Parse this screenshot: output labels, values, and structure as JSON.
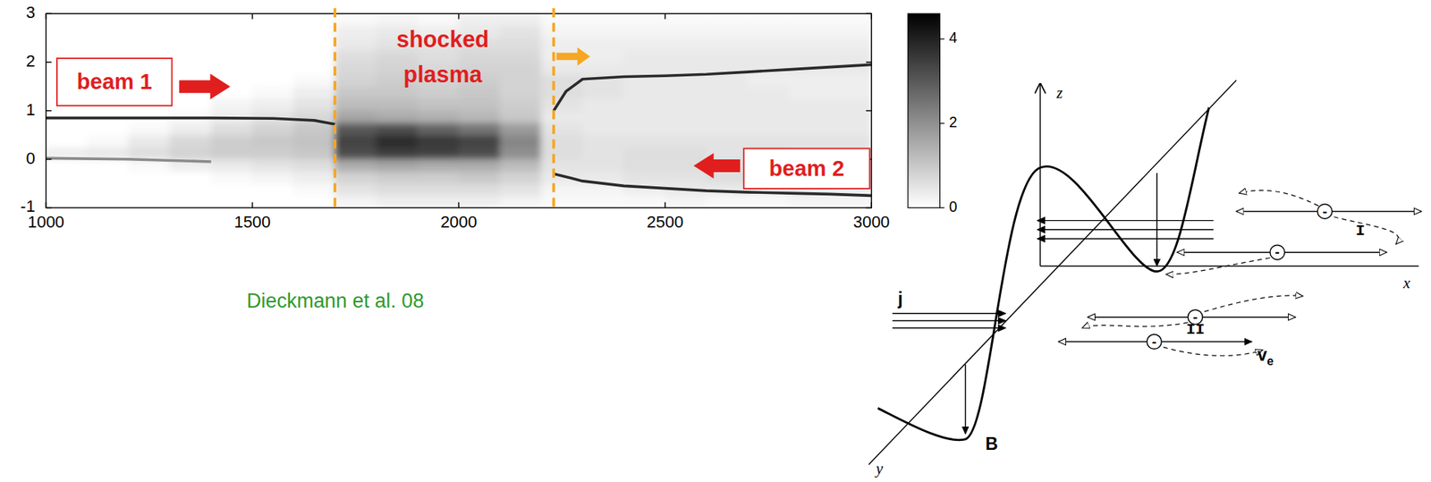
{
  "chart_data": {
    "type": "heatmap",
    "xlim": [
      1000,
      3000
    ],
    "ylim": [
      -1,
      3
    ],
    "xticks": [
      1000,
      1500,
      2000,
      2500,
      3000
    ],
    "yticks": [
      -1,
      0,
      1,
      2,
      3
    ],
    "x_bins": [
      1000,
      1100,
      1200,
      1300,
      1400,
      1500,
      1600,
      1700,
      1800,
      1900,
      2000,
      2100,
      2200,
      2300,
      2400,
      2500,
      2600,
      2700,
      2800,
      2900,
      3000
    ],
    "y_bins": [
      -1,
      -0.75,
      -0.5,
      -0.25,
      0,
      0.25,
      0.5,
      0.75,
      1,
      1.25,
      1.5,
      1.75,
      2,
      2.25,
      2.5,
      2.75,
      3
    ],
    "cells": [
      [
        0,
        0,
        0,
        0,
        0,
        0,
        0,
        0.2,
        0.3,
        0.3,
        0.3,
        0.2,
        0.1,
        0.1,
        0.1,
        0.2,
        0.1,
        0.1,
        0.2,
        0.2
      ],
      [
        0,
        0,
        0,
        0,
        0,
        0,
        0.1,
        0.5,
        0.6,
        0.6,
        0.6,
        0.5,
        0.2,
        0.2,
        0.3,
        0.4,
        0.4,
        0.3,
        0.4,
        0.3
      ],
      [
        0,
        0,
        0,
        0,
        0.1,
        0.2,
        0.3,
        0.8,
        0.9,
        0.9,
        1.0,
        0.8,
        0.4,
        0.4,
        0.5,
        0.5,
        0.6,
        0.5,
        0.5,
        0.5
      ],
      [
        0,
        0,
        0.1,
        0.3,
        0.4,
        0.5,
        0.6,
        1.5,
        1.6,
        1.5,
        1.5,
        1.2,
        0.5,
        0.5,
        0.6,
        0.6,
        0.6,
        0.6,
        0.5,
        0.5
      ],
      [
        0.3,
        0.4,
        0.6,
        0.8,
        0.9,
        0.9,
        1.0,
        3.2,
        3.5,
        3.4,
        3.2,
        2.0,
        0.6,
        0.5,
        0.6,
        0.6,
        0.5,
        0.6,
        0.5,
        0.5
      ],
      [
        0,
        0.1,
        0.4,
        0.7,
        0.9,
        1.0,
        1.1,
        3.4,
        3.8,
        3.6,
        3.4,
        2.2,
        0.6,
        0.5,
        0.5,
        0.5,
        0.5,
        0.5,
        0.5,
        0.5
      ],
      [
        0,
        0,
        0.1,
        0.3,
        0.6,
        0.8,
        1.0,
        3.0,
        3.2,
        2.8,
        2.5,
        1.8,
        0.5,
        0.4,
        0.4,
        0.4,
        0.4,
        0.4,
        0.4,
        0.4
      ],
      [
        0,
        0,
        0,
        0.1,
        0.3,
        0.5,
        0.7,
        1.6,
        1.5,
        1.4,
        1.3,
        1.0,
        0.4,
        0.4,
        0.4,
        0.4,
        0.4,
        0.4,
        0.4,
        0.4
      ],
      [
        0,
        0,
        0,
        0,
        0.2,
        0.3,
        0.5,
        1.2,
        1.2,
        1.1,
        1.1,
        0.9,
        0.5,
        0.4,
        0.4,
        0.4,
        0.4,
        0.4,
        0.4,
        0.4
      ],
      [
        0,
        0,
        0,
        0,
        0,
        0.1,
        0.3,
        1.0,
        1.0,
        0.9,
        1.0,
        0.8,
        0.6,
        0.5,
        0.4,
        0.4,
        0.4,
        0.4,
        0.3,
        0.3
      ],
      [
        0,
        0,
        0,
        0,
        0,
        0,
        0.1,
        0.8,
        0.9,
        0.8,
        0.9,
        0.8,
        0.6,
        0.5,
        0.4,
        0.4,
        0.4,
        0.3,
        0.3,
        0.3
      ],
      [
        0,
        0,
        0,
        0,
        0,
        0,
        0,
        0.7,
        0.8,
        0.7,
        0.8,
        0.8,
        0.4,
        0.4,
        0.4,
        0.4,
        0.4,
        0.4,
        0.4,
        0.4
      ],
      [
        0,
        0,
        0,
        0,
        0,
        0,
        0,
        0.6,
        0.7,
        0.6,
        0.7,
        0.7,
        0.3,
        0.3,
        0.4,
        0.4,
        0.4,
        0.4,
        0.4,
        0.4
      ],
      [
        0,
        0,
        0,
        0,
        0,
        0,
        0,
        0.4,
        0.5,
        0.5,
        0.6,
        0.6,
        0.3,
        0.3,
        0.3,
        0.3,
        0.3,
        0.3,
        0.3,
        0.3
      ],
      [
        0,
        0,
        0,
        0,
        0,
        0,
        0,
        0.3,
        0.4,
        0.3,
        0.4,
        0.5,
        0.2,
        0.2,
        0.2,
        0.2,
        0.2,
        0.2,
        0.2,
        0.2
      ],
      [
        0,
        0,
        0,
        0,
        0,
        0,
        0,
        0.1,
        0.2,
        0.1,
        0.3,
        0.3,
        0.1,
        0.1,
        0.1,
        0.1,
        0.1,
        0.1,
        0.1,
        0.1
      ]
    ],
    "colorbar": {
      "range": [
        0,
        4.6
      ],
      "ticks": [
        0,
        2,
        4
      ]
    },
    "series": [
      {
        "type": "line",
        "color": "#2a2a2a",
        "x": [
          1000,
          1200,
          1400,
          1550,
          1650,
          1700
        ],
        "values": [
          0.85,
          0.85,
          0.85,
          0.84,
          0.8,
          0.72
        ]
      },
      {
        "type": "line",
        "color": "#8a8a8a",
        "x": [
          1000,
          1200,
          1400
        ],
        "values": [
          0.02,
          0.0,
          -0.05
        ]
      },
      {
        "type": "line",
        "color": "#2a2a2a",
        "x": [
          2230,
          2260,
          2300,
          2400,
          2500,
          2600,
          2700,
          2800,
          2900,
          3000
        ],
        "values": [
          1.0,
          1.4,
          1.65,
          1.7,
          1.72,
          1.75,
          1.8,
          1.85,
          1.9,
          1.95
        ]
      },
      {
        "type": "line",
        "color": "#2a2a2a",
        "x": [
          2230,
          2300,
          2400,
          2500,
          2600,
          2700,
          2800,
          2900,
          3000
        ],
        "values": [
          -0.3,
          -0.45,
          -0.55,
          -0.6,
          -0.65,
          -0.68,
          -0.7,
          -0.72,
          -0.75
        ]
      }
    ],
    "vlines": [
      1700,
      2230
    ],
    "annotations": [
      {
        "text": "beam 1"
      },
      {
        "text": "shocked plasma"
      },
      {
        "text": "beam 2"
      }
    ],
    "caption": "Dieckmann et al. 08"
  },
  "diagram": {
    "axes": {
      "z": "z",
      "x": "x",
      "y": "y"
    },
    "labels": {
      "current": "j",
      "field": "B",
      "group_1": "I",
      "group_2": "II",
      "velocity": "v",
      "velocity_sub": "e",
      "electron": "-"
    }
  }
}
